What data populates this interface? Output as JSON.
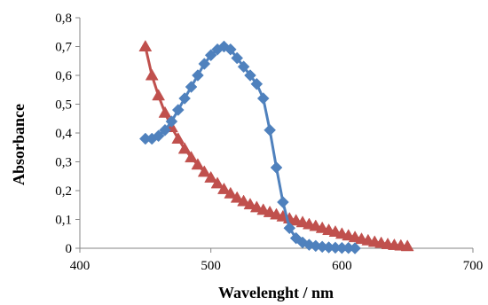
{
  "chart_data": {
    "type": "scatter",
    "title": "",
    "xlabel": "Wavelenght / nm",
    "ylabel": "Absorbance",
    "xlim": [
      400,
      700
    ],
    "ylim": [
      0,
      0.8
    ],
    "x_ticks": [
      400,
      500,
      600,
      700
    ],
    "x_tick_labels": [
      "400",
      "500",
      "600",
      "700"
    ],
    "y_ticks": [
      0,
      0.1,
      0.2,
      0.3,
      0.4,
      0.5,
      0.6,
      0.7,
      0.8
    ],
    "y_tick_labels": [
      "0",
      "0,1",
      "0,2",
      "0,3",
      "0,4",
      "0,5",
      "0,6",
      "0,7",
      "0,8"
    ],
    "grid": false,
    "legend": "none",
    "series": [
      {
        "marker": "diamond",
        "color": "#4F81BD",
        "x": [
          450,
          455,
          460,
          465,
          470,
          475,
          480,
          485,
          490,
          495,
          500,
          505,
          510,
          515,
          520,
          525,
          530,
          535,
          540,
          545,
          550,
          555,
          560,
          565,
          570,
          575,
          580,
          585,
          590,
          595,
          600,
          605,
          610
        ],
        "y": [
          0.38,
          0.38,
          0.39,
          0.41,
          0.44,
          0.48,
          0.52,
          0.56,
          0.6,
          0.64,
          0.67,
          0.69,
          0.7,
          0.69,
          0.66,
          0.63,
          0.6,
          0.57,
          0.52,
          0.41,
          0.28,
          0.16,
          0.07,
          0.035,
          0.02,
          0.012,
          0.008,
          0.005,
          0.003,
          0.002,
          0.001,
          0.001,
          0.0
        ]
      },
      {
        "marker": "triangle",
        "color": "#C0504D",
        "x": [
          450,
          455,
          460,
          465,
          470,
          475,
          480,
          485,
          490,
          495,
          500,
          505,
          510,
          515,
          520,
          525,
          530,
          535,
          540,
          545,
          550,
          555,
          560,
          565,
          570,
          575,
          580,
          585,
          590,
          595,
          600,
          605,
          610,
          615,
          620,
          625,
          630,
          635,
          640,
          645,
          650
        ],
        "y": [
          0.7,
          0.6,
          0.53,
          0.47,
          0.42,
          0.38,
          0.345,
          0.315,
          0.29,
          0.265,
          0.245,
          0.225,
          0.205,
          0.19,
          0.175,
          0.163,
          0.152,
          0.142,
          0.133,
          0.125,
          0.117,
          0.11,
          0.103,
          0.096,
          0.09,
          0.083,
          0.077,
          0.07,
          0.063,
          0.057,
          0.05,
          0.044,
          0.038,
          0.032,
          0.027,
          0.022,
          0.018,
          0.014,
          0.011,
          0.009,
          0.007
        ]
      }
    ]
  }
}
